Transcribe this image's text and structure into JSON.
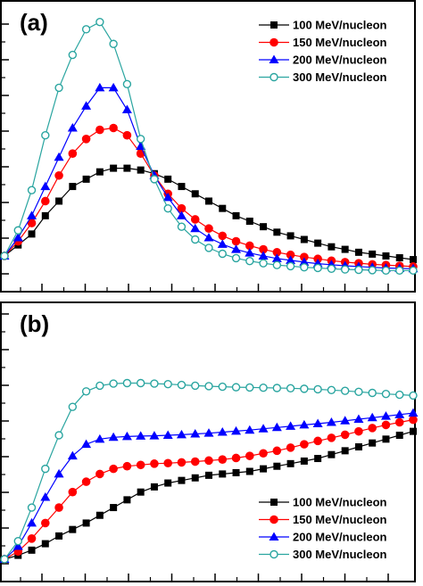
{
  "legend_labels": [
    "100 MeV/nucleon",
    "150 MeV/nucleon",
    "200 MeV/nucleon",
    "300 MeV/nucleon"
  ],
  "chart_data": [
    {
      "type": "line",
      "panel_label": "(a)",
      "legend_position": "top-right",
      "xlim": [
        0,
        30
      ],
      "ylim": [
        0,
        7
      ],
      "x": [
        0,
        1,
        2,
        3,
        4,
        5,
        6,
        7,
        8,
        9,
        10,
        11,
        12,
        13,
        14,
        15,
        16,
        17,
        18,
        19,
        20,
        21,
        22,
        23,
        24,
        25,
        26,
        27,
        28,
        29,
        30
      ],
      "series": [
        {
          "name": "100 MeV/nucleon",
          "color": "#000000",
          "marker": "square",
          "values": [
            0.5,
            0.8,
            1.1,
            1.6,
            2.0,
            2.4,
            2.6,
            2.8,
            2.9,
            2.9,
            2.85,
            2.75,
            2.6,
            2.4,
            2.2,
            2.0,
            1.8,
            1.6,
            1.45,
            1.3,
            1.15,
            1.05,
            0.95,
            0.85,
            0.75,
            0.68,
            0.6,
            0.55,
            0.5,
            0.45,
            0.4
          ]
        },
        {
          "name": "150 MeV/nucleon",
          "color": "#ff0000",
          "marker": "circle",
          "values": [
            0.5,
            0.9,
            1.4,
            2.0,
            2.7,
            3.3,
            3.7,
            3.95,
            4.0,
            3.8,
            3.3,
            2.7,
            2.2,
            1.8,
            1.5,
            1.25,
            1.05,
            0.9,
            0.78,
            0.68,
            0.6,
            0.53,
            0.47,
            0.42,
            0.37,
            0.33,
            0.3,
            0.27,
            0.25,
            0.23,
            0.21
          ]
        },
        {
          "name": "200 MeV/nucleon",
          "color": "#0000ff",
          "marker": "triangle",
          "values": [
            0.5,
            1.0,
            1.6,
            2.4,
            3.2,
            4.0,
            4.6,
            5.1,
            5.1,
            4.5,
            3.5,
            2.7,
            2.1,
            1.6,
            1.25,
            1.0,
            0.82,
            0.68,
            0.58,
            0.5,
            0.43,
            0.38,
            0.33,
            0.29,
            0.26,
            0.23,
            0.21,
            0.19,
            0.17,
            0.16,
            0.15
          ]
        },
        {
          "name": "300 MeV/nucleon",
          "color": "#2aa5a0",
          "marker": "open-circle",
          "values": [
            0.5,
            1.2,
            2.3,
            3.8,
            5.1,
            6.0,
            6.7,
            6.9,
            6.3,
            5.2,
            3.7,
            2.6,
            1.8,
            1.3,
            0.95,
            0.72,
            0.56,
            0.44,
            0.36,
            0.3,
            0.25,
            0.22,
            0.19,
            0.17,
            0.15,
            0.13,
            0.12,
            0.11,
            0.1,
            0.1,
            0.1
          ]
        }
      ]
    },
    {
      "type": "line",
      "panel_label": "(b)",
      "legend_position": "bottom-right",
      "xlim": [
        0,
        30
      ],
      "ylim": [
        0,
        8
      ],
      "x": [
        0,
        1,
        2,
        3,
        4,
        5,
        6,
        7,
        8,
        9,
        10,
        11,
        12,
        13,
        14,
        15,
        16,
        17,
        18,
        19,
        20,
        21,
        22,
        23,
        24,
        25,
        26,
        27,
        28,
        29,
        30
      ],
      "series": [
        {
          "name": "100 MeV/nucleon",
          "color": "#000000",
          "marker": "square",
          "values": [
            0.0,
            0.15,
            0.35,
            0.6,
            0.9,
            1.15,
            1.4,
            1.7,
            2.0,
            2.3,
            2.6,
            2.8,
            2.95,
            3.05,
            3.15,
            3.25,
            3.3,
            3.35,
            3.4,
            3.5,
            3.6,
            3.7,
            3.8,
            3.9,
            4.05,
            4.2,
            4.35,
            4.5,
            4.65,
            4.8,
            4.95
          ]
        },
        {
          "name": "150 MeV/nucleon",
          "color": "#ff0000",
          "marker": "circle",
          "values": [
            0.0,
            0.3,
            0.8,
            1.4,
            2.0,
            2.6,
            3.0,
            3.3,
            3.5,
            3.6,
            3.65,
            3.7,
            3.72,
            3.75,
            3.78,
            3.82,
            3.86,
            3.92,
            4.0,
            4.1,
            4.2,
            4.32,
            4.45,
            4.58,
            4.7,
            4.82,
            4.95,
            5.08,
            5.2,
            5.3,
            5.4
          ]
        },
        {
          "name": "200 MeV/nucleon",
          "color": "#0000ff",
          "marker": "triangle",
          "values": [
            0.0,
            0.5,
            1.4,
            2.4,
            3.3,
            4.0,
            4.45,
            4.65,
            4.72,
            4.75,
            4.77,
            4.78,
            4.8,
            4.82,
            4.85,
            4.88,
            4.92,
            4.96,
            5.0,
            5.05,
            5.1,
            5.15,
            5.2,
            5.25,
            5.3,
            5.36,
            5.42,
            5.48,
            5.54,
            5.6,
            5.66
          ]
        },
        {
          "name": "300 MeV/nucleon",
          "color": "#2aa5a0",
          "marker": "open-circle",
          "values": [
            0.0,
            0.7,
            2.0,
            3.5,
            4.8,
            5.9,
            6.5,
            6.72,
            6.8,
            6.82,
            6.82,
            6.8,
            6.78,
            6.75,
            6.72,
            6.7,
            6.68,
            6.66,
            6.65,
            6.64,
            6.63,
            6.62,
            6.6,
            6.58,
            6.55,
            6.52,
            6.48,
            6.44,
            6.4,
            6.37,
            6.34
          ]
        }
      ]
    }
  ]
}
